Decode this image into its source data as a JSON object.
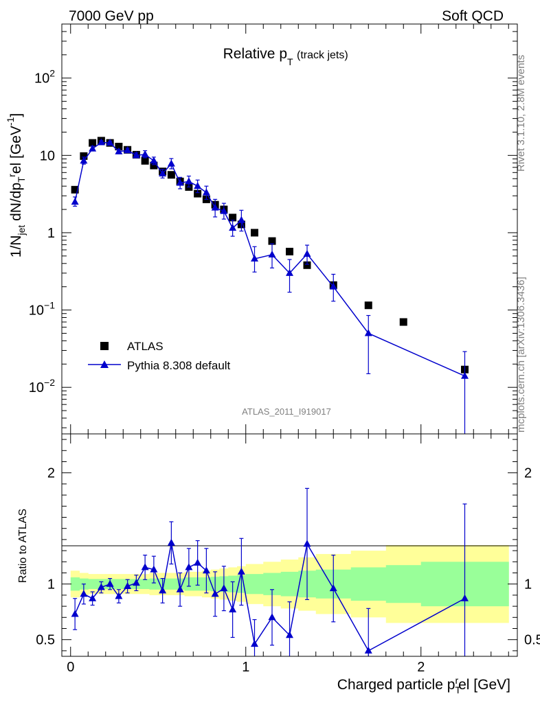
{
  "header": {
    "left": "7000 GeV pp",
    "right": "Soft QCD"
  },
  "side_labels": {
    "rivet": "Rivet 3.1.10,  2.8M events",
    "mcplots": "mcplots.cern.ch [arXiv:1306.3436]"
  },
  "analysis_id": "ATLAS_2011_I919017",
  "colors": {
    "data": "#000000",
    "mc": "#0000cc",
    "band_inner": "#99ff99",
    "band_outer": "#ffff99"
  },
  "chart_data": [
    {
      "type": "scatter",
      "title": "Relative p_T (track jets)",
      "title_main": "Relative p",
      "title_sub": "T",
      "title_paren": "(track jets)",
      "ylabel": "1/N_jet dN/dp_T^rel [GeV^-1]",
      "yscale": "log",
      "ylim": [
        0.0025,
        500
      ],
      "xlim": [
        -0.05,
        2.55
      ],
      "yticks": [
        {
          "value": 100,
          "base": "10",
          "exp": "2"
        },
        {
          "value": 10,
          "base": "10",
          "exp": ""
        },
        {
          "value": 1,
          "base": "1",
          "exp": ""
        },
        {
          "value": 0.1,
          "base": "10",
          "exp": "−1"
        },
        {
          "value": 0.01,
          "base": "10",
          "exp": "−2"
        }
      ],
      "legend": [
        {
          "label": "ATLAS",
          "marker": "square"
        },
        {
          "label": "Pythia 8.308 default",
          "marker": "triangle"
        }
      ],
      "series": [
        {
          "name": "ATLAS",
          "x": [
            0.025,
            0.075,
            0.125,
            0.175,
            0.225,
            0.275,
            0.325,
            0.375,
            0.425,
            0.475,
            0.525,
            0.575,
            0.625,
            0.675,
            0.725,
            0.775,
            0.825,
            0.875,
            0.925,
            0.975,
            1.05,
            1.15,
            1.25,
            1.35,
            1.5,
            1.7,
            1.9,
            2.25
          ],
          "y": [
            3.6,
            9.8,
            14.5,
            15.5,
            14.5,
            13.0,
            11.8,
            10.2,
            8.5,
            7.4,
            6.2,
            5.6,
            4.6,
            3.9,
            3.2,
            2.7,
            2.3,
            2.0,
            1.57,
            1.28,
            1.0,
            0.78,
            0.57,
            0.38,
            0.21,
            0.115,
            0.07,
            0.017
          ]
        },
        {
          "name": "Pythia 8.308 default",
          "x": [
            0.025,
            0.075,
            0.125,
            0.175,
            0.225,
            0.275,
            0.325,
            0.375,
            0.425,
            0.475,
            0.525,
            0.575,
            0.625,
            0.675,
            0.725,
            0.775,
            0.825,
            0.875,
            0.925,
            0.975,
            1.05,
            1.15,
            1.25,
            1.35,
            1.5,
            1.7,
            2.25
          ],
          "y": [
            2.5,
            8.5,
            12.2,
            14.7,
            14.5,
            11.2,
            11.6,
            10.0,
            10.3,
            8.5,
            5.8,
            7.8,
            4.4,
            4.6,
            4.0,
            3.3,
            2.1,
            1.9,
            1.15,
            1.45,
            0.46,
            0.52,
            0.3,
            0.53,
            0.2,
            0.05,
            0.014
          ],
          "yerr_low": [
            0.3,
            0.8,
            0.8,
            0.7,
            0.7,
            0.7,
            0.7,
            0.7,
            1.0,
            0.9,
            0.7,
            1.1,
            0.7,
            0.7,
            0.7,
            0.6,
            0.5,
            0.4,
            0.25,
            0.4,
            0.15,
            0.17,
            0.13,
            0.14,
            0.07,
            0.035,
            0.013
          ],
          "yerr_high": [
            0.4,
            1.0,
            1.0,
            0.8,
            0.8,
            0.8,
            0.8,
            0.8,
            1.2,
            1.0,
            0.8,
            1.3,
            0.8,
            0.8,
            0.8,
            0.7,
            0.6,
            0.5,
            0.3,
            0.5,
            0.2,
            0.2,
            0.15,
            0.16,
            0.09,
            0.035,
            0.015
          ]
        }
      ]
    },
    {
      "type": "line",
      "title": "Ratio to ATLAS",
      "ylabel": "Ratio to ATLAS",
      "xlabel": "Charged particle p_T^rel [GeV]",
      "xlabel_main": "Charged particle p",
      "xlabel_sub": "T",
      "xlabel_sup": "r",
      "xlabel_tail": "el [GeV]",
      "ylim": [
        0.35,
        2.35
      ],
      "xlim": [
        -0.05,
        2.55
      ],
      "yticks": [
        {
          "value": 0.5,
          "label": "0.5"
        },
        {
          "value": 1,
          "label": "1"
        },
        {
          "value": 2,
          "label": "2"
        }
      ],
      "xticks": [
        {
          "value": 0,
          "label": "0"
        },
        {
          "value": 1,
          "label": "1"
        },
        {
          "value": 2,
          "label": "2"
        }
      ],
      "band_edges": [
        0.0,
        0.05,
        0.1,
        0.15,
        0.2,
        0.25,
        0.3,
        0.35,
        0.4,
        0.45,
        0.5,
        0.55,
        0.6,
        0.65,
        0.7,
        0.75,
        0.8,
        0.85,
        0.9,
        0.95,
        1.0,
        1.1,
        1.2,
        1.3,
        1.4,
        1.6,
        1.8,
        2.0,
        2.5
      ],
      "band_inner": [
        0.06,
        0.05,
        0.045,
        0.045,
        0.045,
        0.045,
        0.045,
        0.045,
        0.045,
        0.05,
        0.05,
        0.05,
        0.05,
        0.06,
        0.06,
        0.06,
        0.065,
        0.07,
        0.075,
        0.08,
        0.09,
        0.1,
        0.11,
        0.12,
        0.13,
        0.15,
        0.17,
        0.2
      ],
      "band_outer": [
        0.12,
        0.1,
        0.09,
        0.09,
        0.09,
        0.09,
        0.09,
        0.09,
        0.09,
        0.1,
        0.1,
        0.1,
        0.1,
        0.11,
        0.11,
        0.12,
        0.13,
        0.14,
        0.15,
        0.16,
        0.18,
        0.2,
        0.22,
        0.24,
        0.27,
        0.3,
        0.35,
        0.35
      ],
      "series": [
        {
          "name": "Pythia 8.308 default / ATLAS",
          "x": [
            0.025,
            0.075,
            0.125,
            0.175,
            0.225,
            0.275,
            0.325,
            0.375,
            0.425,
            0.475,
            0.525,
            0.575,
            0.625,
            0.675,
            0.725,
            0.775,
            0.825,
            0.875,
            0.925,
            0.975,
            1.05,
            1.15,
            1.25,
            1.35,
            1.5,
            1.7,
            2.25
          ],
          "y": [
            0.73,
            0.91,
            0.87,
            0.97,
            1.0,
            0.89,
            0.98,
            1.01,
            1.15,
            1.13,
            0.94,
            1.37,
            0.95,
            1.15,
            1.19,
            1.12,
            0.91,
            0.96,
            0.77,
            1.11,
            0.46,
            0.7,
            0.54,
            1.36,
            0.96,
            0.4,
            0.87
          ],
          "yerr": [
            0.14,
            0.09,
            0.06,
            0.05,
            0.05,
            0.06,
            0.06,
            0.07,
            0.11,
            0.12,
            0.11,
            0.19,
            0.15,
            0.17,
            0.2,
            0.2,
            0.2,
            0.2,
            0.25,
            0.3,
            0.22,
            0.25,
            0.3,
            0.5,
            0.3,
            0.38,
            0.85
          ]
        }
      ]
    }
  ]
}
